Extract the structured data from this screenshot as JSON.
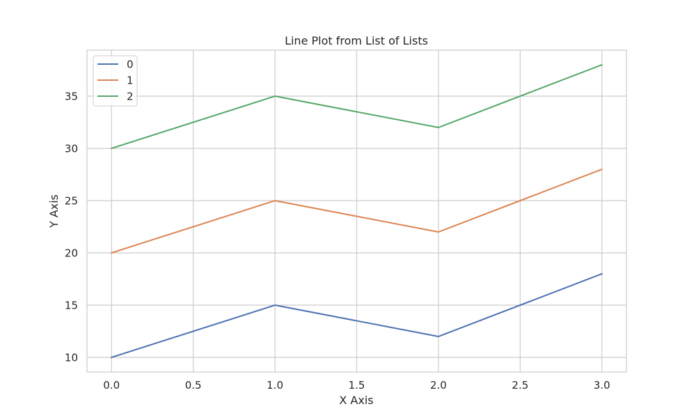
{
  "chart_data": {
    "type": "line",
    "title": "Line Plot from List of Lists",
    "xlabel": "X Axis",
    "ylabel": "Y Axis",
    "x": [
      0,
      1,
      2,
      3
    ],
    "xlim": [
      -0.15,
      3.15
    ],
    "ylim": [
      8.6,
      39.4
    ],
    "xticks": [
      0.0,
      0.5,
      1.0,
      1.5,
      2.0,
      2.5,
      3.0
    ],
    "xtick_labels": [
      "0.0",
      "0.5",
      "1.0",
      "1.5",
      "2.0",
      "2.5",
      "3.0"
    ],
    "yticks": [
      10,
      15,
      20,
      25,
      30,
      35
    ],
    "ytick_labels": [
      "10",
      "15",
      "20",
      "25",
      "30",
      "35"
    ],
    "grid": true,
    "legend_position": "top-left",
    "series": [
      {
        "name": "0",
        "color": "#4c72b0",
        "values": [
          10,
          15,
          12,
          18
        ]
      },
      {
        "name": "1",
        "color": "#dd8452",
        "values": [
          20,
          25,
          22,
          28
        ]
      },
      {
        "name": "2",
        "color": "#55a868",
        "values": [
          30,
          35,
          32,
          38
        ]
      }
    ]
  },
  "colors": {
    "grid": "#cccccc",
    "spine": "#cccccc",
    "text": "#262626"
  }
}
